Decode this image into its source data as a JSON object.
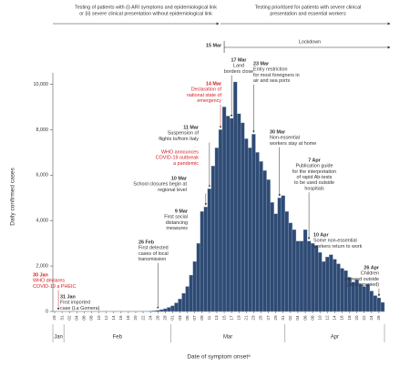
{
  "chart_data": {
    "type": "bar",
    "y_axis_label": "Daily confirmed cases",
    "x_axis_label": "Date of symptom onsetᵃ",
    "categories": [
      "29",
      null,
      "31",
      null,
      "02",
      null,
      "04",
      null,
      "06",
      null,
      "08",
      null,
      "10",
      null,
      "12",
      null,
      "14",
      null,
      "16",
      null,
      "18",
      null,
      "20",
      null,
      "22",
      null,
      "24",
      null,
      "26",
      null,
      "28",
      null,
      "01",
      null,
      "03",
      null,
      "05",
      null,
      "07",
      null,
      "09",
      null,
      "11",
      null,
      "13",
      null,
      "15",
      null,
      "17",
      null,
      "19",
      null,
      "21",
      null,
      "23",
      null,
      "25",
      null,
      "27",
      null,
      "29",
      null,
      "31",
      null,
      "02",
      null,
      "04",
      null,
      "06",
      null,
      "08",
      null,
      "10",
      null,
      "12",
      null,
      "14",
      null,
      "16",
      null,
      "18",
      null,
      "20",
      null,
      "22",
      null,
      "24",
      null,
      "26",
      null
    ],
    "values": [
      0,
      0,
      1,
      0,
      0,
      0,
      0,
      1,
      0,
      0,
      1,
      0,
      0,
      0,
      0,
      1,
      0,
      0,
      0,
      0,
      1,
      0,
      0,
      2,
      3,
      5,
      20,
      30,
      50,
      80,
      120,
      180,
      250,
      380,
      550,
      800,
      1100,
      1600,
      2200,
      3000,
      4400,
      4600,
      5400,
      6400,
      7200,
      8000,
      9000,
      8600,
      8500,
      10100,
      8700,
      8300,
      7600,
      7200,
      7800,
      7000,
      6600,
      6200,
      5800,
      4800,
      4300,
      5000,
      5100,
      4400,
      3900,
      3600,
      3100,
      3100,
      3600,
      3100,
      3000,
      2900,
      2600,
      2200,
      2400,
      2500,
      2300,
      2100,
      1900,
      1800,
      1500,
      1300,
      1400,
      1200,
      1100,
      1200,
      900,
      700,
      600,
      400
    ],
    "color": "#2f4b74",
    "months": [
      "Jan",
      "Feb",
      "Mar",
      "Apr"
    ],
    "ylim": [
      0,
      10500
    ],
    "yticks": [
      0,
      {
        "value": 2000,
        "label": "2,000"
      },
      {
        "value": 4000,
        "label": "4,000"
      },
      {
        "value": 6000,
        "label": "6,000"
      },
      {
        "value": 8000,
        "label": "8,000"
      },
      {
        "value": 10000,
        "label": "10,000"
      }
    ],
    "phases": [
      {
        "lines": [
          "Testing of patients with (i) ARI symptoms and epidemiological link",
          "or (ii) severe clinical presentation without epidemiological link"
        ]
      },
      {
        "lines": [
          "Testing prioritised for patients with severe clinical",
          "presentation and essential workers"
        ]
      }
    ],
    "lockdown": {
      "date": "15 Mar",
      "label": "Lockdown"
    },
    "annotations": [
      {
        "date": "30 Jan",
        "lines": [
          "WHO declares",
          "COVID-19 a PHEIC"
        ],
        "color": "#d62027"
      },
      {
        "date": "31 Jan",
        "lines": [
          "First imported",
          "case (La Gomera)"
        ],
        "color": "#333333"
      },
      {
        "date": "26 Feb",
        "lines": [
          "First detected",
          "cases of local",
          "transmission"
        ],
        "color": "#333333"
      },
      {
        "date": "9 Mar",
        "lines": [
          "First social",
          "distancing",
          "measures"
        ],
        "color": "#333333"
      },
      {
        "date": "10 Mar",
        "lines": [
          "School closures begin at",
          "regional level"
        ],
        "color": "#333333"
      },
      {
        "date": "11 Mar",
        "lines": [
          "Suspension of",
          "flights to/from Italy"
        ],
        "color": "#333333"
      },
      {
        "lines": [
          "WHO announces",
          "COVID-19 outbreak",
          "a pandemic"
        ],
        "color": "#d62027"
      },
      {
        "date": "14 Mar",
        "lines": [
          "Declaration of",
          "national state of",
          "emergency"
        ],
        "color": "#d62027"
      },
      {
        "date": "17 Mar",
        "lines": [
          "Land",
          "borders close"
        ],
        "color": "#333333"
      },
      {
        "date": "23 Mar",
        "lines": [
          "Entry restriction",
          "for most foreigners in",
          "air and sea ports"
        ],
        "color": "#333333"
      },
      {
        "date": "30 Mar",
        "lines": [
          "Non-essential",
          "workers stay at home"
        ],
        "color": "#333333"
      },
      {
        "date": "7 Apr",
        "lines": [
          "Publication guide",
          "for the interpretation",
          "of rapid Ab-tests",
          "to be used outside",
          "hospitals"
        ],
        "color": "#333333"
      },
      {
        "date": "10 Apr",
        "lines": [
          "Some non-essential",
          "workers return to work"
        ],
        "color": "#333333"
      },
      {
        "date": "26 Apr",
        "lines": [
          "Children",
          "allowed outside",
          "(accompanied)"
        ],
        "color": "#333333"
      }
    ]
  }
}
